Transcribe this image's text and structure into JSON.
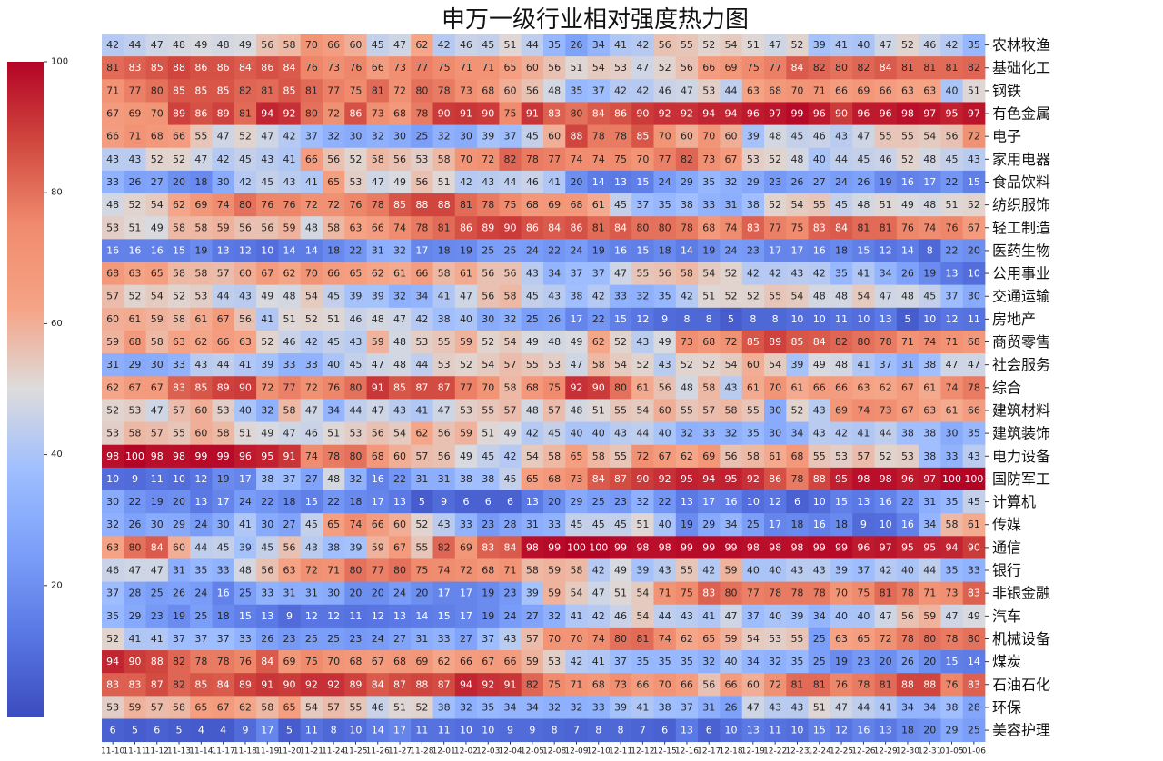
{
  "chart_data": {
    "type": "heatmap",
    "title": "申万一级行业相对强度热力图",
    "colormap": "coolwarm",
    "value_range": [
      0,
      100
    ],
    "colorbar_ticks": [
      20,
      40,
      60,
      80,
      100
    ],
    "columns": [
      "11-10",
      "11-11",
      "11-12",
      "11-13",
      "11-14",
      "11-17",
      "11-18",
      "11-19",
      "11-20",
      "11-21",
      "11-24",
      "11-25",
      "11-26",
      "11-27",
      "11-28",
      "12-01",
      "12-02",
      "12-03",
      "12-04",
      "12-05",
      "12-08",
      "12-09",
      "12-10",
      "12-11",
      "12-12",
      "12-15",
      "12-16",
      "12-17",
      "12-18",
      "12-19",
      "12-22",
      "12-23",
      "12-24",
      "12-25",
      "12-26",
      "12-29",
      "12-30",
      "12-31",
      "01-05",
      "01-06"
    ],
    "rows": [
      "农林牧渔",
      "基础化工",
      "钢铁",
      "有色金属",
      "电子",
      "家用电器",
      "食品饮料",
      "纺织服饰",
      "轻工制造",
      "医药生物",
      "公用事业",
      "交通运输",
      "房地产",
      "商贸零售",
      "社会服务",
      "综合",
      "建筑材料",
      "建筑装饰",
      "电力设备",
      "国防军工",
      "计算机",
      "传媒",
      "通信",
      "银行",
      "非银金融",
      "汽车",
      "机械设备",
      "煤炭",
      "石油石化",
      "环保",
      "美容护理"
    ],
    "values": [
      [
        42,
        44,
        47,
        48,
        49,
        48,
        49,
        56,
        58,
        70,
        66,
        60,
        45,
        47,
        62,
        42,
        46,
        45,
        51,
        44,
        35,
        26,
        34,
        41,
        42,
        56,
        55,
        52,
        54,
        51,
        47,
        52,
        39,
        41,
        40,
        47,
        52,
        46,
        42,
        35
      ],
      [
        81,
        83,
        85,
        88,
        86,
        86,
        84,
        86,
        84,
        76,
        73,
        76,
        66,
        73,
        77,
        75,
        71,
        71,
        65,
        60,
        56,
        51,
        54,
        53,
        47,
        52,
        56,
        66,
        69,
        75,
        77,
        84,
        82,
        80,
        82,
        84,
        81,
        81,
        81,
        82
      ],
      [
        71,
        77,
        80,
        85,
        85,
        85,
        82,
        81,
        85,
        81,
        77,
        75,
        81,
        72,
        80,
        78,
        73,
        68,
        60,
        56,
        48,
        35,
        37,
        42,
        42,
        46,
        47,
        53,
        44,
        63,
        68,
        70,
        71,
        66,
        69,
        66,
        63,
        63,
        40,
        51
      ],
      [
        67,
        69,
        70,
        89,
        86,
        89,
        81,
        94,
        92,
        80,
        72,
        86,
        73,
        68,
        78,
        90,
        91,
        90,
        75,
        91,
        83,
        80,
        84,
        86,
        90,
        92,
        92,
        94,
        94,
        96,
        97,
        99,
        96,
        90,
        96,
        96,
        98,
        97,
        95,
        97
      ],
      [
        66,
        71,
        68,
        66,
        55,
        47,
        52,
        47,
        42,
        37,
        32,
        30,
        32,
        30,
        25,
        32,
        30,
        39,
        37,
        45,
        60,
        88,
        78,
        78,
        85,
        70,
        60,
        70,
        60,
        39,
        48,
        45,
        46,
        43,
        47,
        55,
        55,
        54,
        56,
        72
      ],
      [
        43,
        43,
        52,
        52,
        47,
        42,
        45,
        43,
        41,
        66,
        56,
        52,
        58,
        56,
        53,
        58,
        70,
        72,
        82,
        78,
        77,
        74,
        74,
        75,
        70,
        77,
        82,
        73,
        67,
        53,
        52,
        48,
        40,
        44,
        45,
        46,
        52,
        48,
        45,
        43
      ],
      [
        33,
        26,
        27,
        20,
        18,
        30,
        42,
        45,
        43,
        41,
        65,
        53,
        47,
        49,
        56,
        51,
        42,
        43,
        44,
        46,
        41,
        20,
        14,
        13,
        15,
        24,
        29,
        35,
        32,
        29,
        23,
        26,
        27,
        24,
        26,
        19,
        16,
        17,
        22,
        15
      ],
      [
        48,
        52,
        54,
        62,
        69,
        74,
        80,
        76,
        76,
        72,
        72,
        76,
        78,
        85,
        88,
        88,
        81,
        78,
        75,
        68,
        69,
        68,
        61,
        45,
        37,
        35,
        38,
        33,
        31,
        38,
        52,
        54,
        55,
        45,
        48,
        51,
        49,
        48,
        51,
        52
      ],
      [
        53,
        51,
        49,
        58,
        58,
        59,
        56,
        56,
        59,
        48,
        58,
        63,
        66,
        74,
        78,
        81,
        86,
        89,
        90,
        86,
        84,
        86,
        81,
        84,
        80,
        80,
        78,
        68,
        74,
        83,
        77,
        75,
        83,
        84,
        81,
        81,
        76,
        74,
        76,
        67
      ],
      [
        16,
        16,
        16,
        15,
        19,
        13,
        12,
        10,
        14,
        14,
        18,
        22,
        31,
        32,
        17,
        18,
        19,
        25,
        25,
        24,
        22,
        24,
        19,
        16,
        15,
        18,
        14,
        19,
        24,
        23,
        17,
        17,
        16,
        18,
        15,
        12,
        14,
        8,
        22,
        20
      ],
      [
        68,
        63,
        65,
        58,
        58,
        57,
        60,
        67,
        62,
        70,
        66,
        65,
        62,
        61,
        66,
        58,
        61,
        56,
        56,
        43,
        34,
        37,
        37,
        47,
        55,
        56,
        58,
        54,
        52,
        42,
        42,
        43,
        42,
        35,
        41,
        34,
        26,
        19,
        13,
        10
      ],
      [
        57,
        52,
        54,
        52,
        53,
        44,
        43,
        49,
        48,
        54,
        45,
        39,
        39,
        32,
        34,
        41,
        47,
        56,
        58,
        45,
        43,
        38,
        42,
        33,
        32,
        35,
        42,
        51,
        52,
        52,
        55,
        54,
        48,
        48,
        54,
        47,
        48,
        45,
        37,
        30
      ],
      [
        60,
        61,
        59,
        58,
        61,
        67,
        56,
        41,
        51,
        52,
        51,
        46,
        48,
        47,
        42,
        38,
        40,
        30,
        32,
        25,
        26,
        17,
        22,
        15,
        12,
        9,
        8,
        8,
        5,
        8,
        8,
        10,
        10,
        11,
        10,
        13,
        5,
        10,
        12,
        11
      ],
      [
        59,
        68,
        58,
        63,
        62,
        66,
        63,
        52,
        46,
        42,
        45,
        43,
        59,
        48,
        53,
        55,
        59,
        52,
        54,
        49,
        48,
        49,
        62,
        52,
        43,
        49,
        73,
        68,
        72,
        85,
        89,
        85,
        84,
        82,
        80,
        78,
        71,
        74,
        71,
        68
      ],
      [
        31,
        29,
        30,
        33,
        43,
        44,
        41,
        39,
        33,
        33,
        40,
        45,
        47,
        48,
        44,
        53,
        52,
        54,
        57,
        55,
        53,
        47,
        58,
        54,
        52,
        43,
        52,
        52,
        54,
        60,
        54,
        39,
        49,
        48,
        41,
        37,
        31,
        38,
        47,
        47
      ],
      [
        62,
        67,
        67,
        83,
        85,
        89,
        90,
        72,
        77,
        72,
        76,
        80,
        91,
        85,
        87,
        87,
        77,
        70,
        58,
        68,
        75,
        92,
        90,
        80,
        61,
        56,
        48,
        58,
        43,
        61,
        70,
        61,
        66,
        66,
        63,
        62,
        67,
        61,
        74,
        78
      ],
      [
        52,
        53,
        47,
        57,
        60,
        53,
        40,
        32,
        58,
        47,
        34,
        44,
        47,
        43,
        41,
        47,
        53,
        55,
        57,
        48,
        57,
        48,
        51,
        55,
        54,
        60,
        55,
        57,
        58,
        55,
        30,
        52,
        43,
        69,
        74,
        73,
        67,
        63,
        61,
        66
      ],
      [
        53,
        58,
        57,
        55,
        60,
        58,
        51,
        49,
        47,
        46,
        51,
        53,
        56,
        54,
        62,
        56,
        59,
        51,
        49,
        42,
        45,
        40,
        40,
        43,
        44,
        40,
        32,
        33,
        32,
        35,
        30,
        34,
        43,
        42,
        41,
        44,
        38,
        38,
        30,
        35
      ],
      [
        98,
        100,
        98,
        98,
        99,
        99,
        96,
        95,
        91,
        74,
        78,
        80,
        68,
        60,
        57,
        56,
        49,
        45,
        42,
        54,
        58,
        65,
        58,
        55,
        72,
        67,
        62,
        69,
        56,
        58,
        61,
        68,
        55,
        53,
        57,
        52,
        53,
        38,
        33,
        43
      ],
      [
        10,
        9,
        11,
        10,
        12,
        19,
        17,
        38,
        37,
        27,
        48,
        32,
        16,
        22,
        31,
        31,
        38,
        38,
        45,
        65,
        68,
        73,
        84,
        87,
        90,
        92,
        95,
        94,
        95,
        92,
        86,
        78,
        88,
        95,
        98,
        98,
        96,
        97,
        100,
        100
      ],
      [
        30,
        22,
        19,
        20,
        13,
        17,
        24,
        22,
        18,
        15,
        22,
        18,
        17,
        13,
        5,
        9,
        6,
        6,
        6,
        13,
        20,
        29,
        25,
        23,
        32,
        22,
        13,
        17,
        16,
        10,
        12,
        6,
        10,
        15,
        13,
        16,
        22,
        31,
        35,
        45
      ],
      [
        32,
        26,
        30,
        29,
        24,
        30,
        41,
        30,
        27,
        45,
        65,
        74,
        66,
        60,
        52,
        43,
        33,
        23,
        28,
        31,
        33,
        45,
        45,
        45,
        51,
        40,
        19,
        29,
        34,
        25,
        17,
        18,
        16,
        18,
        9,
        10,
        16,
        34,
        58,
        61
      ],
      [
        63,
        80,
        84,
        60,
        44,
        45,
        39,
        45,
        56,
        43,
        38,
        39,
        59,
        67,
        55,
        82,
        69,
        83,
        84,
        98,
        99,
        100,
        100,
        99,
        98,
        98,
        99,
        99,
        99,
        98,
        98,
        98,
        99,
        99,
        96,
        97,
        95,
        95,
        94,
        90
      ],
      [
        46,
        47,
        47,
        31,
        35,
        33,
        48,
        56,
        63,
        72,
        71,
        80,
        77,
        80,
        75,
        74,
        72,
        68,
        71,
        58,
        59,
        58,
        42,
        49,
        39,
        43,
        55,
        42,
        59,
        40,
        40,
        43,
        43,
        39,
        37,
        42,
        40,
        44,
        35,
        33
      ],
      [
        37,
        28,
        25,
        26,
        24,
        16,
        25,
        33,
        31,
        31,
        30,
        20,
        20,
        24,
        20,
        17,
        17,
        19,
        23,
        39,
        59,
        54,
        47,
        51,
        54,
        71,
        75,
        83,
        80,
        77,
        78,
        78,
        78,
        70,
        75,
        81,
        78,
        71,
        73,
        83
      ],
      [
        35,
        29,
        23,
        19,
        25,
        18,
        15,
        13,
        9,
        12,
        12,
        11,
        12,
        13,
        14,
        15,
        17,
        19,
        24,
        27,
        32,
        41,
        42,
        46,
        54,
        44,
        43,
        41,
        47,
        37,
        40,
        39,
        34,
        40,
        40,
        47,
        56,
        59,
        47,
        49
      ],
      [
        52,
        41,
        41,
        37,
        37,
        37,
        33,
        26,
        23,
        25,
        25,
        23,
        24,
        27,
        31,
        33,
        27,
        37,
        43,
        57,
        70,
        70,
        74,
        80,
        81,
        74,
        62,
        65,
        59,
        54,
        53,
        55,
        25,
        63,
        65,
        72,
        78,
        80,
        78,
        80
      ],
      [
        94,
        90,
        88,
        82,
        78,
        78,
        76,
        84,
        69,
        75,
        70,
        68,
        67,
        68,
        69,
        62,
        66,
        67,
        66,
        59,
        53,
        42,
        41,
        37,
        35,
        35,
        35,
        32,
        40,
        34,
        32,
        35,
        25,
        19,
        23,
        20,
        26,
        20,
        15,
        14
      ],
      [
        83,
        83,
        87,
        82,
        85,
        84,
        89,
        91,
        90,
        92,
        92,
        89,
        84,
        87,
        88,
        87,
        94,
        92,
        91,
        82,
        75,
        71,
        68,
        73,
        66,
        70,
        66,
        56,
        66,
        60,
        72,
        81,
        81,
        76,
        78,
        81,
        88,
        88,
        76,
        83
      ],
      [
        53,
        59,
        57,
        58,
        65,
        67,
        62,
        58,
        65,
        54,
        57,
        55,
        46,
        51,
        52,
        38,
        32,
        35,
        34,
        34,
        32,
        32,
        33,
        39,
        41,
        38,
        37,
        31,
        26,
        47,
        43,
        43,
        51,
        47,
        44,
        41,
        34,
        34,
        38,
        28
      ],
      [
        6,
        5,
        6,
        5,
        4,
        4,
        9,
        17,
        5,
        11,
        8,
        10,
        14,
        17,
        11,
        11,
        10,
        10,
        9,
        9,
        8,
        7,
        8,
        8,
        7,
        6,
        13,
        6,
        10,
        13,
        11,
        10,
        15,
        12,
        16,
        13,
        18,
        20,
        29,
        25
      ]
    ]
  }
}
